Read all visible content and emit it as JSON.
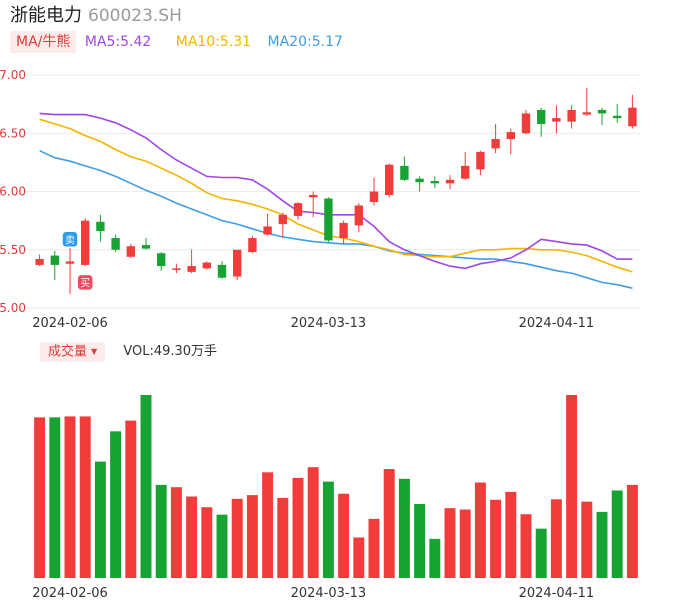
{
  "header": {
    "name": "浙能电力",
    "code": "600023.SH"
  },
  "ma": {
    "tag": "MA/牛熊",
    "ma5": "MA5:5.42",
    "ma10": "MA10:5.31",
    "ma20": "MA20:5.17"
  },
  "volume_header": {
    "tag": "成交量",
    "value": "VOL:49.30万手"
  },
  "markers": {
    "sell": "卖",
    "buy": "买"
  },
  "colors": {
    "up": "#f23b3b",
    "down": "#16a332",
    "ma5": "#a046e8",
    "ma10": "#f5b400",
    "ma20": "#3f9ee8"
  },
  "chart_data": {
    "type": "candlestick",
    "y_ticks": [
      "7.00",
      "6.50",
      "6.00",
      "5.50",
      "5.00"
    ],
    "ylim": [
      5.0,
      7.0
    ],
    "x_labels": [
      "2024-02-06",
      "2024-03-13",
      "2024-04-11"
    ],
    "x_label_index": [
      2,
      19,
      34
    ],
    "candles": [
      {
        "o": 5.37,
        "c": 5.42,
        "h": 5.46,
        "l": 5.36
      },
      {
        "o": 5.45,
        "c": 5.37,
        "h": 5.49,
        "l": 5.24
      },
      {
        "o": 5.38,
        "c": 5.4,
        "h": 5.55,
        "l": 5.12
      },
      {
        "o": 5.37,
        "c": 5.75,
        "h": 5.77,
        "l": 5.36
      },
      {
        "o": 5.74,
        "c": 5.66,
        "h": 5.8,
        "l": 5.57
      },
      {
        "o": 5.6,
        "c": 5.5,
        "h": 5.63,
        "l": 5.48
      },
      {
        "o": 5.44,
        "c": 5.53,
        "h": 5.55,
        "l": 5.43
      },
      {
        "o": 5.54,
        "c": 5.51,
        "h": 5.6,
        "l": 5.5
      },
      {
        "o": 5.47,
        "c": 5.36,
        "h": 5.48,
        "l": 5.32
      },
      {
        "o": 5.33,
        "c": 5.34,
        "h": 5.38,
        "l": 5.3
      },
      {
        "o": 5.31,
        "c": 5.36,
        "h": 5.5,
        "l": 5.3
      },
      {
        "o": 5.34,
        "c": 5.39,
        "h": 5.4,
        "l": 5.33
      },
      {
        "o": 5.37,
        "c": 5.26,
        "h": 5.4,
        "l": 5.25
      },
      {
        "o": 5.27,
        "c": 5.5,
        "h": 5.5,
        "l": 5.24
      },
      {
        "o": 5.48,
        "c": 5.6,
        "h": 5.62,
        "l": 5.47
      },
      {
        "o": 5.63,
        "c": 5.7,
        "h": 5.81,
        "l": 5.62
      },
      {
        "o": 5.72,
        "c": 5.8,
        "h": 5.82,
        "l": 5.6
      },
      {
        "o": 5.79,
        "c": 5.9,
        "h": 5.91,
        "l": 5.76
      },
      {
        "o": 5.95,
        "c": 5.97,
        "h": 6.0,
        "l": 5.78
      },
      {
        "o": 5.94,
        "c": 5.58,
        "h": 5.95,
        "l": 5.56
      },
      {
        "o": 5.6,
        "c": 5.73,
        "h": 5.75,
        "l": 5.55
      },
      {
        "o": 5.71,
        "c": 5.88,
        "h": 5.9,
        "l": 5.65
      },
      {
        "o": 5.91,
        "c": 6.0,
        "h": 6.12,
        "l": 5.88
      },
      {
        "o": 5.97,
        "c": 6.23,
        "h": 6.24,
        "l": 5.95
      },
      {
        "o": 6.22,
        "c": 6.1,
        "h": 6.3,
        "l": 6.09
      },
      {
        "o": 6.11,
        "c": 6.08,
        "h": 6.13,
        "l": 6.0
      },
      {
        "o": 6.09,
        "c": 6.07,
        "h": 6.13,
        "l": 6.03
      },
      {
        "o": 6.07,
        "c": 6.1,
        "h": 6.14,
        "l": 6.02
      },
      {
        "o": 6.11,
        "c": 6.22,
        "h": 6.34,
        "l": 6.1
      },
      {
        "o": 6.19,
        "c": 6.34,
        "h": 6.35,
        "l": 6.14
      },
      {
        "o": 6.37,
        "c": 6.45,
        "h": 6.58,
        "l": 6.33
      },
      {
        "o": 6.45,
        "c": 6.51,
        "h": 6.54,
        "l": 6.32
      },
      {
        "o": 6.5,
        "c": 6.67,
        "h": 6.7,
        "l": 6.49
      },
      {
        "o": 6.7,
        "c": 6.58,
        "h": 6.72,
        "l": 6.47
      },
      {
        "o": 6.6,
        "c": 6.63,
        "h": 6.74,
        "l": 6.5
      },
      {
        "o": 6.6,
        "c": 6.7,
        "h": 6.74,
        "l": 6.54
      },
      {
        "o": 6.66,
        "c": 6.68,
        "h": 6.89,
        "l": 6.65
      },
      {
        "o": 6.7,
        "c": 6.67,
        "h": 6.72,
        "l": 6.57
      },
      {
        "o": 6.65,
        "c": 6.63,
        "h": 6.75,
        "l": 6.59
      },
      {
        "o": 6.56,
        "c": 6.72,
        "h": 6.83,
        "l": 6.54
      }
    ],
    "ma5": [
      6.67,
      6.66,
      6.66,
      6.66,
      6.63,
      6.59,
      6.53,
      6.46,
      6.36,
      6.27,
      6.2,
      6.13,
      6.12,
      6.12,
      6.1,
      6.02,
      5.92,
      5.83,
      5.82,
      5.8,
      5.8,
      5.8,
      5.7,
      5.57,
      5.5,
      5.45,
      5.4,
      5.36,
      5.34,
      5.38,
      5.4,
      5.43,
      5.5,
      5.59,
      5.57,
      5.55,
      5.54,
      5.49,
      5.42,
      5.42
    ],
    "ma10": [
      6.62,
      6.58,
      6.54,
      6.48,
      6.43,
      6.36,
      6.3,
      6.26,
      6.2,
      6.14,
      6.07,
      5.99,
      5.94,
      5.92,
      5.89,
      5.85,
      5.8,
      5.72,
      5.67,
      5.62,
      5.6,
      5.57,
      5.53,
      5.5,
      5.46,
      5.45,
      5.44,
      5.44,
      5.47,
      5.5,
      5.5,
      5.51,
      5.51,
      5.5,
      5.5,
      5.48,
      5.45,
      5.4,
      5.35,
      5.31
    ],
    "ma20": [
      6.35,
      6.29,
      6.26,
      6.22,
      6.18,
      6.13,
      6.07,
      6.01,
      5.96,
      5.9,
      5.85,
      5.8,
      5.75,
      5.72,
      5.68,
      5.64,
      5.61,
      5.59,
      5.57,
      5.56,
      5.55,
      5.55,
      5.53,
      5.49,
      5.47,
      5.46,
      5.45,
      5.44,
      5.43,
      5.42,
      5.42,
      5.4,
      5.38,
      5.35,
      5.32,
      5.3,
      5.26,
      5.22,
      5.2,
      5.17
    ],
    "volume": [
      3.45,
      3.45,
      3.47,
      3.47,
      2.5,
      3.15,
      3.38,
      3.93,
      2.0,
      1.95,
      1.75,
      1.52,
      1.36,
      1.7,
      1.78,
      2.27,
      1.72,
      2.15,
      2.38,
      2.07,
      1.81,
      0.87,
      1.27,
      2.34,
      2.13,
      1.59,
      0.84,
      1.5,
      1.47,
      2.05,
      1.68,
      1.85,
      1.37,
      1.06,
      1.69,
      3.93,
      1.64,
      1.42,
      1.88,
      2.0
    ],
    "volume_ref": 3.93,
    "marker_sell_index": 2,
    "marker_buy_index": 3
  }
}
